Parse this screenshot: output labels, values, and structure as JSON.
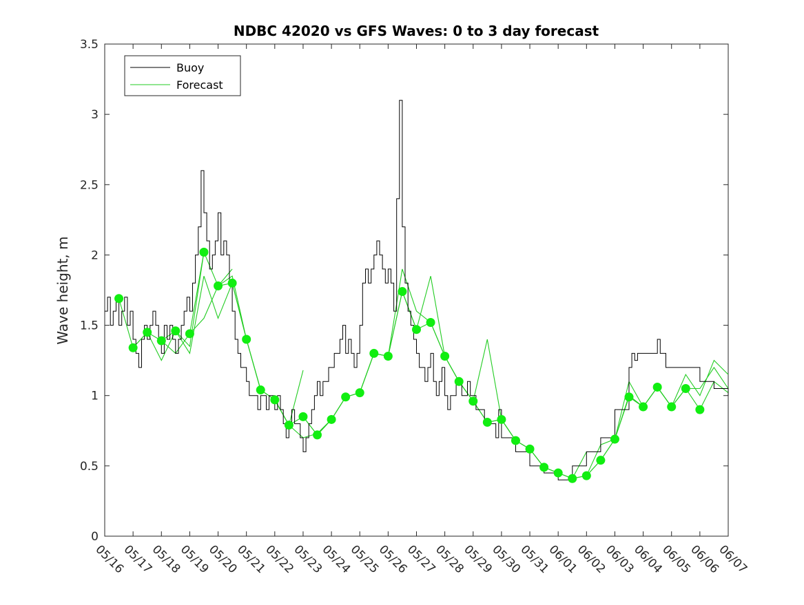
{
  "chart_data": {
    "type": "line",
    "title": "NDBC 42020 vs GFS Waves: 0 to 3 day forecast",
    "xlabel": "",
    "ylabel": "Wave height, m",
    "xlim": [
      "05/16 00:00",
      "06/07 00:00"
    ],
    "ylim": [
      0,
      3.5
    ],
    "yticks": [
      0,
      0.5,
      1,
      1.5,
      2,
      2.5,
      3,
      3.5
    ],
    "ytick_labels": [
      "0",
      "0.5",
      "1",
      "1.5",
      "2",
      "2.5",
      "3",
      "3.5"
    ],
    "xtick_labels": [
      "05/16",
      "05/17",
      "05/18",
      "05/19",
      "05/20",
      "05/21",
      "05/22",
      "05/23",
      "05/24",
      "05/25",
      "05/26",
      "05/27",
      "05/28",
      "05/29",
      "05/30",
      "05/31",
      "06/01",
      "06/02",
      "06/03",
      "06/04",
      "06/05",
      "06/06",
      "06/07"
    ],
    "grid": false,
    "legend": {
      "position": "top-left",
      "entries": [
        {
          "label": "Buoy",
          "color": "#000000"
        },
        {
          "label": "Forecast",
          "color": "#22cc22"
        }
      ]
    },
    "colors": {
      "buoy": "#000000",
      "forecast": "#22cc22",
      "analysis_marker": "#11ee11"
    },
    "series": [
      {
        "name": "Buoy",
        "x_days": [
          0.0,
          0.1,
          0.2,
          0.3,
          0.4,
          0.5,
          0.6,
          0.7,
          0.8,
          0.9,
          1.0,
          1.1,
          1.2,
          1.3,
          1.4,
          1.5,
          1.6,
          1.7,
          1.8,
          1.9,
          2.0,
          2.1,
          2.2,
          2.3,
          2.4,
          2.5,
          2.6,
          2.7,
          2.8,
          2.9,
          3.0,
          3.1,
          3.2,
          3.3,
          3.4,
          3.5,
          3.6,
          3.7,
          3.8,
          3.9,
          4.0,
          4.1,
          4.2,
          4.3,
          4.4,
          4.5,
          4.6,
          4.7,
          4.8,
          4.9,
          5.0,
          5.1,
          5.2,
          5.3,
          5.4,
          5.5,
          5.6,
          5.7,
          5.8,
          5.9,
          6.0,
          6.1,
          6.2,
          6.3,
          6.4,
          6.5,
          6.6,
          6.7,
          6.8,
          6.9,
          7.0,
          7.1,
          7.2,
          7.3,
          7.4,
          7.5,
          7.6,
          7.7,
          7.8,
          7.9,
          8.0,
          8.1,
          8.2,
          8.3,
          8.4,
          8.5,
          8.6,
          8.7,
          8.8,
          8.9,
          9.0,
          9.1,
          9.2,
          9.3,
          9.4,
          9.5,
          9.6,
          9.7,
          9.8,
          9.9,
          10.0,
          10.1,
          10.2,
          10.3,
          10.4,
          10.5,
          10.6,
          10.7,
          10.8,
          10.9,
          11.0,
          11.1,
          11.2,
          11.3,
          11.4,
          11.5,
          11.6,
          11.7,
          11.8,
          11.9,
          12.0,
          12.1,
          12.2,
          12.3,
          12.4,
          12.5,
          12.6,
          12.7,
          12.8,
          12.9,
          13.0,
          13.1,
          13.2,
          13.3,
          13.4,
          13.5,
          13.6,
          13.7,
          13.8,
          13.9,
          14.0,
          14.5,
          15.0,
          15.5,
          16.0,
          16.5,
          17.0,
          17.5,
          18.0,
          18.5,
          18.6,
          18.7,
          18.8,
          19.0,
          19.5,
          19.6,
          19.8,
          20.0,
          20.5,
          21.0,
          21.5,
          22.0
        ],
        "values": [
          1.6,
          1.7,
          1.5,
          1.6,
          1.7,
          1.5,
          1.6,
          1.7,
          1.5,
          1.6,
          1.4,
          1.3,
          1.2,
          1.4,
          1.5,
          1.4,
          1.5,
          1.6,
          1.5,
          1.4,
          1.3,
          1.5,
          1.4,
          1.5,
          1.4,
          1.3,
          1.4,
          1.5,
          1.6,
          1.7,
          1.6,
          1.8,
          2.0,
          2.2,
          2.6,
          2.3,
          2.1,
          1.9,
          2.0,
          2.1,
          2.3,
          2.0,
          2.1,
          2.0,
          1.8,
          1.6,
          1.4,
          1.3,
          1.2,
          1.2,
          1.1,
          1.0,
          1.0,
          1.0,
          0.9,
          1.0,
          1.0,
          0.9,
          1.0,
          1.0,
          0.9,
          1.0,
          0.9,
          0.8,
          0.7,
          0.8,
          0.9,
          0.8,
          0.8,
          0.7,
          0.6,
          0.7,
          0.8,
          0.9,
          1.0,
          1.1,
          1.0,
          1.1,
          1.1,
          1.2,
          1.2,
          1.3,
          1.3,
          1.4,
          1.5,
          1.3,
          1.4,
          1.3,
          1.2,
          1.3,
          1.5,
          1.8,
          1.9,
          1.8,
          1.9,
          2.0,
          2.1,
          2.0,
          1.9,
          1.8,
          1.9,
          1.8,
          1.6,
          2.4,
          3.1,
          2.2,
          1.8,
          1.6,
          1.5,
          1.4,
          1.3,
          1.2,
          1.2,
          1.1,
          1.2,
          1.3,
          1.1,
          1.0,
          1.1,
          1.2,
          1.0,
          0.9,
          1.0,
          1.0,
          1.1,
          1.1,
          1.0,
          1.0,
          1.1,
          1.0,
          1.0,
          0.9,
          0.9,
          0.9,
          0.8,
          0.8,
          0.8,
          0.8,
          0.7,
          0.9,
          0.7,
          0.6,
          0.5,
          0.45,
          0.4,
          0.5,
          0.6,
          0.7,
          0.9,
          1.2,
          1.3,
          1.25,
          1.3,
          1.3,
          1.4,
          1.3,
          1.2,
          1.2,
          1.2,
          1.1,
          1.05,
          1.0
        ]
      },
      {
        "name": "Forecast",
        "runs": [
          {
            "x_days": [
              0.5,
              1.0,
              1.5,
              2.0,
              2.5,
              3.0,
              3.5
            ],
            "values": [
              1.69,
              1.34,
              1.45,
              1.25,
              1.46,
              1.35,
              2.02
            ]
          },
          {
            "x_days": [
              1.0,
              1.5,
              2.0,
              2.5,
              3.0,
              3.5,
              4.0,
              4.5
            ],
            "values": [
              1.34,
              1.45,
              1.39,
              1.3,
              1.44,
              1.55,
              1.78,
              1.9
            ]
          },
          {
            "x_days": [
              2.0,
              2.5,
              3.0,
              3.5,
              4.0,
              4.5,
              5.0
            ],
            "values": [
              1.39,
              1.46,
              1.3,
              1.85,
              1.55,
              1.8,
              1.4
            ]
          },
          {
            "x_days": [
              3.0,
              3.5,
              4.0,
              4.5,
              5.0,
              5.5,
              6.0
            ],
            "values": [
              1.44,
              2.02,
              1.78,
              1.85,
              1.4,
              1.04,
              0.97
            ]
          },
          {
            "x_days": [
              4.0,
              4.5,
              5.0,
              5.5,
              6.0,
              6.5,
              7.0
            ],
            "values": [
              1.78,
              1.8,
              1.4,
              1.04,
              0.97,
              0.79,
              1.18
            ]
          },
          {
            "x_days": [
              5.0,
              5.5,
              6.0,
              6.5,
              7.0,
              7.5,
              8.0
            ],
            "values": [
              1.4,
              1.04,
              0.97,
              0.79,
              0.85,
              0.72,
              0.83
            ]
          },
          {
            "x_days": [
              6.0,
              6.5,
              7.0,
              7.5,
              8.0,
              8.5,
              9.0
            ],
            "values": [
              0.97,
              0.79,
              0.7,
              0.73,
              0.83,
              0.99,
              1.02
            ]
          },
          {
            "x_days": [
              7.0,
              7.5,
              8.0,
              8.5,
              9.0,
              9.5,
              10.0
            ],
            "values": [
              0.85,
              0.72,
              0.83,
              0.99,
              1.02,
              1.3,
              1.28
            ]
          },
          {
            "x_days": [
              8.0,
              8.5,
              9.0,
              9.5,
              10.0,
              10.5,
              11.0
            ],
            "values": [
              0.83,
              0.99,
              1.02,
              1.3,
              1.28,
              1.74,
              1.47
            ]
          },
          {
            "x_days": [
              9.0,
              9.5,
              10.0,
              10.5,
              11.0,
              11.5,
              12.0
            ],
            "values": [
              1.02,
              1.3,
              1.28,
              1.9,
              1.6,
              1.52,
              1.28
            ]
          },
          {
            "x_days": [
              10.0,
              10.5,
              11.0,
              11.5,
              12.0,
              12.5,
              13.0
            ],
            "values": [
              1.28,
              1.74,
              1.47,
              1.85,
              1.28,
              1.1,
              0.96
            ]
          },
          {
            "x_days": [
              11.0,
              11.5,
              12.0,
              12.5,
              13.0,
              13.5,
              14.0
            ],
            "values": [
              1.47,
              1.52,
              1.28,
              1.1,
              0.96,
              1.4,
              0.83
            ]
          },
          {
            "x_days": [
              12.0,
              12.5,
              13.0,
              13.5,
              14.0,
              14.5,
              15.0
            ],
            "values": [
              1.28,
              1.1,
              0.96,
              0.81,
              0.83,
              0.68,
              0.62
            ]
          },
          {
            "x_days": [
              13.0,
              13.5,
              14.0,
              14.5,
              15.0,
              15.5,
              16.0
            ],
            "values": [
              0.96,
              0.81,
              0.83,
              0.68,
              0.62,
              0.49,
              0.45
            ]
          },
          {
            "x_days": [
              14.0,
              14.5,
              15.0,
              15.5,
              16.0,
              16.5,
              17.0
            ],
            "values": [
              0.83,
              0.68,
              0.62,
              0.49,
              0.45,
              0.41,
              0.6
            ]
          },
          {
            "x_days": [
              15.0,
              15.5,
              16.0,
              16.5,
              17.0,
              17.5,
              18.0
            ],
            "values": [
              0.62,
              0.49,
              0.45,
              0.41,
              0.43,
              0.54,
              0.69
            ]
          },
          {
            "x_days": [
              16.0,
              16.5,
              17.0,
              17.5,
              18.0,
              18.5,
              19.0
            ],
            "values": [
              0.45,
              0.41,
              0.43,
              0.65,
              0.69,
              1.0,
              0.92
            ]
          },
          {
            "x_days": [
              17.0,
              17.5,
              18.0,
              18.5,
              19.0,
              19.5,
              20.0
            ],
            "values": [
              0.43,
              0.54,
              0.69,
              1.1,
              0.92,
              1.06,
              0.92
            ]
          },
          {
            "x_days": [
              18.0,
              18.5,
              19.0,
              19.5,
              20.0,
              20.5,
              21.0
            ],
            "values": [
              0.69,
              0.99,
              0.92,
              1.06,
              0.92,
              1.05,
              0.9
            ]
          },
          {
            "x_days": [
              19.0,
              19.5,
              20.0,
              20.5,
              21.0,
              21.5,
              22.0
            ],
            "values": [
              0.92,
              1.06,
              0.92,
              1.15,
              1.0,
              1.25,
              1.15
            ]
          },
          {
            "x_days": [
              20.0,
              20.5,
              21.0,
              21.5,
              22.0
            ],
            "values": [
              0.92,
              1.05,
              1.05,
              1.2,
              1.05
            ]
          },
          {
            "x_days": [
              21.0,
              21.5,
              22.0
            ],
            "values": [
              0.9,
              1.1,
              1.02
            ]
          }
        ]
      },
      {
        "name": "",
        "style": "markers",
        "x_days": [
          0.5,
          1.0,
          1.5,
          2.0,
          2.5,
          3.0,
          3.5,
          4.0,
          4.5,
          5.0,
          5.5,
          6.0,
          6.5,
          7.0,
          7.5,
          8.0,
          8.5,
          9.0,
          9.5,
          10.0,
          10.5,
          11.0,
          11.5,
          12.0,
          12.5,
          13.0,
          13.5,
          14.0,
          14.5,
          15.0,
          15.5,
          16.0,
          16.5,
          17.0,
          17.5,
          18.0,
          18.5,
          19.0,
          19.5,
          20.0,
          20.5,
          21.0
        ],
        "values": [
          1.69,
          1.34,
          1.45,
          1.39,
          1.46,
          1.44,
          2.02,
          1.78,
          1.8,
          1.4,
          1.04,
          0.97,
          0.79,
          0.85,
          0.72,
          0.83,
          0.99,
          1.02,
          1.3,
          1.28,
          1.74,
          1.47,
          1.52,
          1.28,
          1.1,
          0.96,
          0.81,
          0.83,
          0.68,
          0.62,
          0.49,
          0.45,
          0.41,
          0.43,
          0.54,
          0.69,
          0.99,
          0.92,
          1.06,
          0.92,
          1.05,
          0.9
        ]
      }
    ]
  }
}
